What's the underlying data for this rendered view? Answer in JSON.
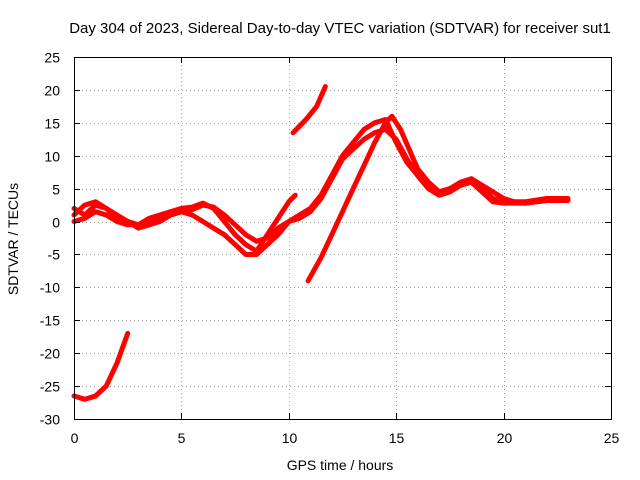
{
  "chart_data": {
    "type": "line",
    "title": "Day 304 of 2023, Sidereal Day-to-day VTEC variation (SDTVAR) for receiver sut1",
    "xlabel": "GPS time / hours",
    "ylabel": "SDTVAR / TECUs",
    "xlim": [
      0,
      25
    ],
    "ylim": [
      -30,
      25
    ],
    "xticks": [
      "0",
      "5",
      "10",
      "15",
      "20",
      "25"
    ],
    "yticks": [
      "25",
      "20",
      "15",
      "10",
      "5",
      "0",
      "-5",
      "-10",
      "-15",
      "-20",
      "-25",
      "-30"
    ],
    "grid": true,
    "color": "#ff0000",
    "series": [
      {
        "name": "trace-main-a",
        "points": [
          [
            0,
            2
          ],
          [
            0.5,
            1
          ],
          [
            1,
            2.5
          ],
          [
            1.5,
            2
          ],
          [
            2,
            0.5
          ],
          [
            2.5,
            0
          ],
          [
            3,
            -1
          ],
          [
            3.5,
            -0.5
          ],
          [
            4,
            0
          ],
          [
            4.5,
            1
          ],
          [
            5,
            1.5
          ],
          [
            5.5,
            1.8
          ],
          [
            6,
            2.5
          ],
          [
            6.5,
            2.2
          ],
          [
            7,
            1
          ],
          [
            7.5,
            -0.5
          ],
          [
            8,
            -2
          ],
          [
            8.5,
            -3
          ],
          [
            9,
            -2.5
          ],
          [
            9.5,
            -1
          ],
          [
            10,
            0
          ],
          [
            10.5,
            1
          ],
          [
            11,
            2
          ],
          [
            11.5,
            4
          ],
          [
            12,
            7
          ],
          [
            12.5,
            10
          ],
          [
            13,
            12
          ],
          [
            13.5,
            14
          ],
          [
            14,
            15
          ],
          [
            14.5,
            15.5
          ],
          [
            15,
            12
          ],
          [
            15.5,
            9
          ],
          [
            16,
            7
          ],
          [
            16.5,
            5
          ],
          [
            17,
            4.5
          ],
          [
            17.5,
            5
          ],
          [
            18,
            6
          ],
          [
            18.5,
            6.5
          ],
          [
            19,
            5
          ],
          [
            19.5,
            3.5
          ],
          [
            20,
            3
          ],
          [
            21,
            3
          ],
          [
            22,
            3.5
          ],
          [
            23,
            3.5
          ]
        ]
      },
      {
        "name": "trace-main-b",
        "points": [
          [
            0,
            0
          ],
          [
            0.5,
            0.5
          ],
          [
            1,
            1.5
          ],
          [
            1.5,
            1
          ],
          [
            2,
            0
          ],
          [
            2.5,
            -0.5
          ],
          [
            3,
            -0.5
          ],
          [
            3.5,
            0
          ],
          [
            4,
            0.5
          ],
          [
            4.5,
            1
          ],
          [
            5,
            1.5
          ],
          [
            5.5,
            1
          ],
          [
            6,
            0
          ],
          [
            6.5,
            -1
          ],
          [
            7,
            -2
          ],
          [
            7.5,
            -3.5
          ],
          [
            8,
            -5
          ],
          [
            8.5,
            -5
          ],
          [
            9,
            -3.5
          ],
          [
            9.5,
            -2
          ],
          [
            10,
            0
          ],
          [
            10.5,
            0.5
          ],
          [
            11,
            1.5
          ],
          [
            11.5,
            3.5
          ],
          [
            12,
            6.5
          ],
          [
            12.5,
            9.5
          ],
          [
            13,
            11
          ],
          [
            13.5,
            12.5
          ],
          [
            14,
            13.5
          ],
          [
            14.5,
            14
          ],
          [
            15,
            12.5
          ],
          [
            15.5,
            9.5
          ],
          [
            16,
            7
          ],
          [
            16.5,
            5
          ],
          [
            17,
            4
          ],
          [
            17.5,
            4.5
          ],
          [
            18,
            5.5
          ],
          [
            18.5,
            6
          ],
          [
            19,
            4.5
          ],
          [
            19.5,
            3
          ],
          [
            20,
            2.8
          ],
          [
            21,
            2.8
          ],
          [
            22,
            3.2
          ],
          [
            23,
            3.2
          ]
        ]
      },
      {
        "name": "trace-main-c",
        "points": [
          [
            0,
            1
          ],
          [
            0.5,
            2.5
          ],
          [
            1,
            3
          ],
          [
            1.5,
            2
          ],
          [
            2,
            1
          ],
          [
            2.5,
            0
          ],
          [
            3,
            -0.5
          ],
          [
            3.5,
            0.5
          ],
          [
            4,
            1
          ],
          [
            4.5,
            1.5
          ],
          [
            5,
            2
          ],
          [
            5.5,
            2.2
          ],
          [
            6,
            2.8
          ],
          [
            6.5,
            2
          ],
          [
            7,
            0
          ],
          [
            7.5,
            -2
          ],
          [
            8,
            -3.5
          ],
          [
            8.5,
            -4.5
          ],
          [
            9,
            -2
          ],
          [
            9.5,
            0.5
          ],
          [
            10,
            3
          ],
          [
            10.3,
            4
          ]
        ]
      },
      {
        "name": "trace-rise",
        "points": [
          [
            10.9,
            -9
          ],
          [
            11.5,
            -5.5
          ],
          [
            12,
            -2
          ],
          [
            12.5,
            1.5
          ],
          [
            13,
            5
          ],
          [
            13.5,
            8.5
          ],
          [
            14,
            12
          ],
          [
            14.5,
            15
          ],
          [
            14.8,
            16
          ],
          [
            15.2,
            14
          ],
          [
            15.6,
            11
          ],
          [
            16,
            8
          ],
          [
            16.5,
            6
          ],
          [
            17,
            4.5
          ],
          [
            17.5,
            5
          ],
          [
            18,
            5.5
          ],
          [
            18.5,
            6.5
          ],
          [
            19,
            5.5
          ],
          [
            19.5,
            4.5
          ],
          [
            20,
            3.5
          ],
          [
            20.5,
            3
          ],
          [
            21,
            2.8
          ],
          [
            22,
            3.2
          ],
          [
            22.8,
            3.5
          ]
        ]
      },
      {
        "name": "trace-high-segment",
        "points": [
          [
            10.2,
            13.5
          ],
          [
            10.8,
            15.5
          ],
          [
            11.3,
            17.5
          ],
          [
            11.7,
            20.5
          ]
        ]
      },
      {
        "name": "trace-low-segment",
        "points": [
          [
            0,
            -26.5
          ],
          [
            0.5,
            -27
          ],
          [
            1,
            -26.5
          ],
          [
            1.5,
            -25
          ],
          [
            2,
            -21.5
          ],
          [
            2.5,
            -17
          ]
        ]
      }
    ]
  }
}
